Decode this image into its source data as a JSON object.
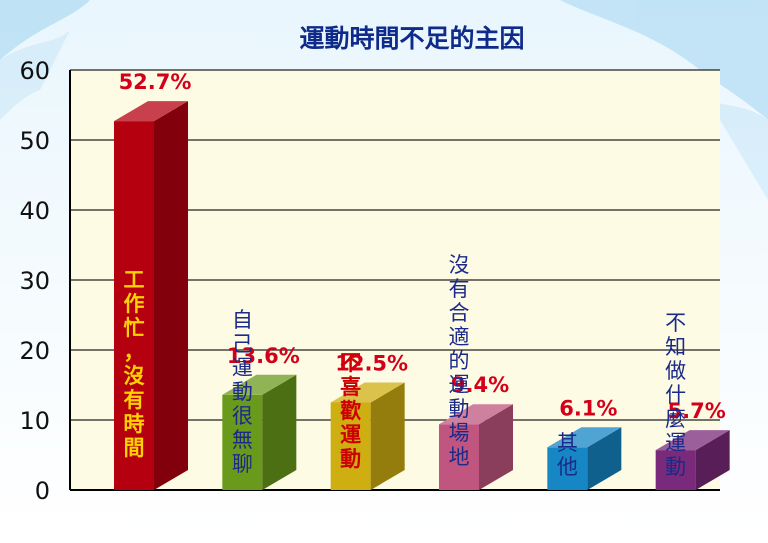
{
  "chart_data": {
    "type": "bar",
    "title": "運動時間不足的主因",
    "xlabel": "",
    "ylabel": "",
    "ylim": [
      0,
      60
    ],
    "yticks": [
      0,
      10,
      20,
      30,
      40,
      50,
      60
    ],
    "grid": true,
    "legend": "none",
    "categories": [
      "工作忙，沒有時間",
      "自己運動很無聊",
      "不喜歡運動",
      "沒有合適的運動場地",
      "其他",
      "不知做什麼運動"
    ],
    "values": [
      52.7,
      13.6,
      12.5,
      9.4,
      6.1,
      5.7
    ],
    "value_labels": [
      "52.7%",
      "13.6%",
      "12.5%",
      "9.4%",
      "6.1%",
      "5.7%"
    ],
    "colors": [
      "#b5000f",
      "#6a9a1c",
      "#cfae12",
      "#c0567f",
      "#1686c4",
      "#7a2a7a"
    ],
    "category_label_colors": [
      "#ffd200",
      "#1b2a8a",
      "#cc0000",
      "#1b2a8a",
      "#1b2a8a",
      "#1b2a8a"
    ]
  }
}
